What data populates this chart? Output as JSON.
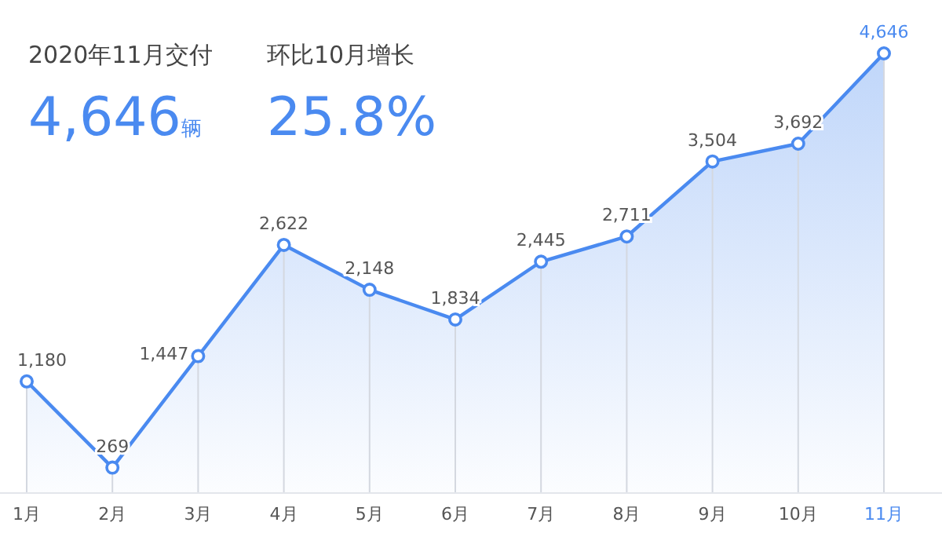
{
  "chart_data": {
    "type": "area",
    "categories": [
      "1月",
      "2月",
      "3月",
      "4月",
      "5月",
      "6月",
      "7月",
      "8月",
      "9月",
      "10月",
      "11月"
    ],
    "values": [
      1180,
      269,
      1447,
      2622,
      2148,
      1834,
      2445,
      2711,
      3504,
      3692,
      4646
    ],
    "color": "#4a8af0",
    "marker": "circle",
    "value_labels": [
      "1,180",
      "269",
      "1,447",
      "2,622",
      "2,148",
      "1,834",
      "2,445",
      "2,711",
      "3,504",
      "3,692",
      "4,646"
    ],
    "grid": "x",
    "annotations": [
      "2020年11月交付",
      "4,646辆",
      "环比10月增长",
      "25.8%"
    ]
  }
}
